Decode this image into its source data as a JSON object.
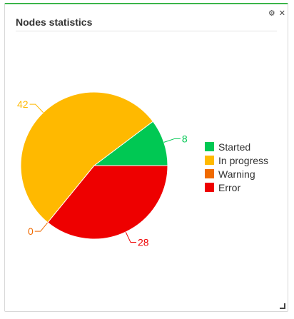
{
  "widget": {
    "title": "Nodes statistics",
    "settings_icon": "gear-icon",
    "close_icon": "close-icon",
    "resize_icon": "resize-handle-icon"
  },
  "chart_data": {
    "type": "pie",
    "categories": [
      "Started",
      "In progress",
      "Warning",
      "Error"
    ],
    "values": [
      8,
      42,
      0,
      28
    ],
    "colors": [
      "#00c853",
      "#ffb900",
      "#f06a00",
      "#ee0000"
    ],
    "legend_placement": "right"
  }
}
